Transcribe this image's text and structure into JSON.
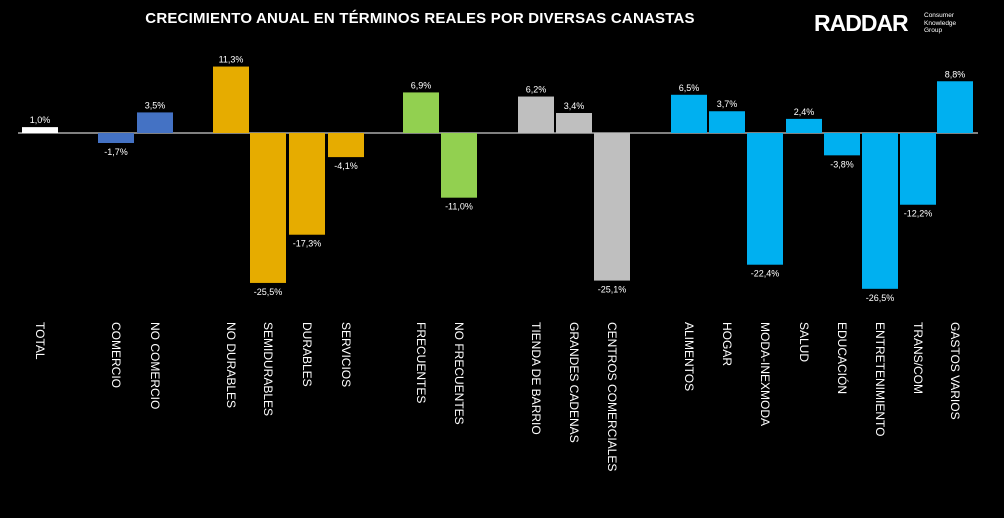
{
  "header": {
    "title": "CRECIMIENTO ANUAL EN TÉRMINOS REALES POR DIVERSAS CANASTAS",
    "logo_text": "RADDAR",
    "logo_tagline": [
      "Consumer",
      "Knowledge",
      "Group"
    ]
  },
  "chart_data": {
    "type": "bar",
    "title": "CRECIMIENTO ANUAL EN TÉRMINOS REALES POR DIVERSAS CANASTAS",
    "xlabel": "",
    "ylabel": "",
    "ylim": [
      -27,
      12
    ],
    "grid": false,
    "legend": "none",
    "categories": [
      "TOTAL",
      "COMERCIO",
      "NO COMERCIO",
      "NO DURABLES",
      "SEMIDURABLES",
      "DURABLES",
      "SERVICIOS",
      "FRECUENTES",
      "NO FRECUENTES",
      "TIENDA DE BARRIO",
      "GRANDES CADENAS",
      "CENTROS COMERCIALES",
      "ALIMENTOS",
      "HOGAR",
      "MODA-INEXMODA",
      "SALUD",
      "EDUCACIÓN",
      "ENTRETENIMIENTO",
      "TRANS/COM",
      "GASTOS VARIOS"
    ],
    "values": [
      1.0,
      -1.7,
      3.5,
      11.3,
      -25.5,
      -17.3,
      -4.1,
      6.9,
      -11.0,
      6.2,
      3.4,
      -25.1,
      6.5,
      3.7,
      -22.4,
      2.4,
      -3.8,
      -26.5,
      -12.2,
      8.8
    ],
    "data_labels": [
      "1,0%",
      "-1,7%",
      "3,5%",
      "11,3%",
      "-25,5%",
      "-17,3%",
      "-4,1%",
      "6,9%",
      "-11,0%",
      "6,2%",
      "3,4%",
      "-25,1%",
      "6,5%",
      "3,7%",
      "-22,4%",
      "2,4%",
      "-3,8%",
      "-26,5%",
      "-12,2%",
      "8,8%"
    ],
    "colors": [
      "#ffffff",
      "#4472c4",
      "#4472c4",
      "#e6ac00",
      "#e6ac00",
      "#e6ac00",
      "#e6ac00",
      "#92d050",
      "#92d050",
      "#bfbfbf",
      "#bfbfbf",
      "#bfbfbf",
      "#00b0f0",
      "#00b0f0",
      "#00b0f0",
      "#00b0f0",
      "#00b0f0",
      "#00b0f0",
      "#00b0f0",
      "#00b0f0"
    ]
  }
}
